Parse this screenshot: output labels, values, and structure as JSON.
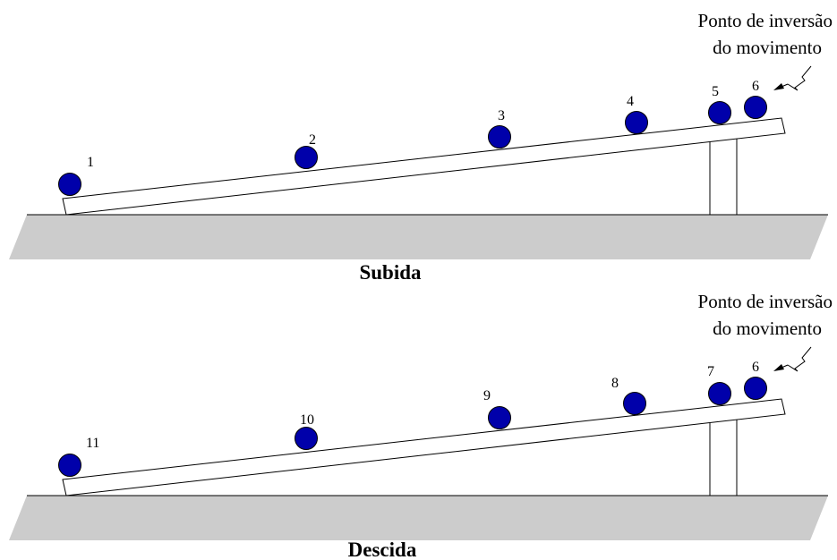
{
  "colors": {
    "ball_fill": "#0000aa",
    "ball_stroke": "#000000",
    "ground_fill": "#cccccc",
    "line": "#000000"
  },
  "panels": [
    {
      "caption": "Subida",
      "note_line1": "Ponto de inversão",
      "note_line2": "do movimento",
      "balls": [
        {
          "label": "1"
        },
        {
          "label": "2"
        },
        {
          "label": "3"
        },
        {
          "label": "4"
        },
        {
          "label": "5"
        },
        {
          "label": "6"
        }
      ]
    },
    {
      "caption": "Descida",
      "note_line1": "Ponto de inversão",
      "note_line2": "do movimento",
      "balls": [
        {
          "label": "11"
        },
        {
          "label": "10"
        },
        {
          "label": "9"
        },
        {
          "label": "8"
        },
        {
          "label": "7"
        },
        {
          "label": "6"
        }
      ]
    }
  ]
}
